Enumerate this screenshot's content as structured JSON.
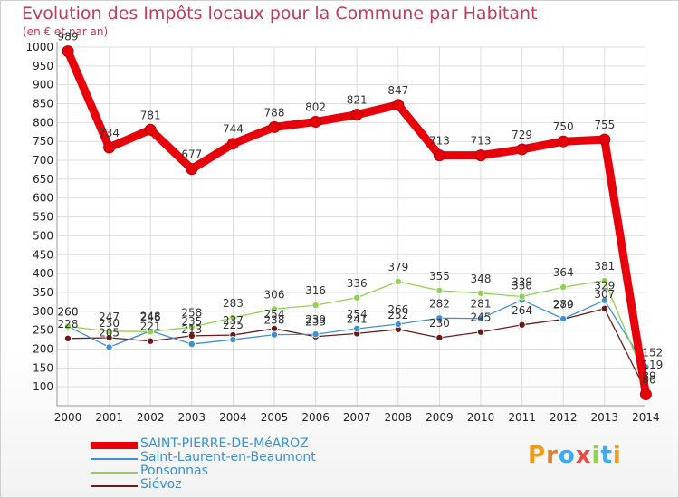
{
  "chart_data": {
    "type": "line",
    "title": "Evolution des Impôts locaux pour la Commune par Habitant",
    "subtitle": "(en € et par an)",
    "x": [
      "2000",
      "2001",
      "2002",
      "2003",
      "2004",
      "2005",
      "2006",
      "2007",
      "2008",
      "2009",
      "2010",
      "2011",
      "2012",
      "2013",
      "2014"
    ],
    "y_ticks": [
      100,
      150,
      200,
      250,
      300,
      350,
      400,
      450,
      500,
      550,
      600,
      650,
      700,
      750,
      800,
      850,
      900,
      950,
      1000
    ],
    "ylim": [
      50,
      1000
    ],
    "grid": true,
    "legend_position": "bottom-left",
    "series": [
      {
        "name": "SAINT-PIERRE-DE-MéAROZ",
        "color": "#e8000b",
        "values": [
          989,
          734,
          781,
          677,
          744,
          788,
          802,
          821,
          847,
          713,
          713,
          729,
          750,
          755,
          80
        ]
      },
      {
        "name": "Saint-Laurent-en-Beaumont",
        "color": "#3f8fd6",
        "values": [
          260,
          205,
          248,
          213,
          225,
          238,
          239,
          254,
          266,
          282,
          281,
          330,
          280,
          329,
          152
        ]
      },
      {
        "name": "Ponsonnas",
        "color": "#8ed34f",
        "values": [
          260,
          247,
          246,
          258,
          283,
          306,
          316,
          336,
          379,
          355,
          348,
          339,
          364,
          381,
          119
        ]
      },
      {
        "name": "Siévoz",
        "color": "#6b1a1a",
        "values": [
          228,
          230,
          221,
          235,
          237,
          254,
          233,
          241,
          252,
          230,
          245,
          264,
          279,
          307,
          89
        ]
      }
    ],
    "data_labels": [
      [
        "989",
        "734",
        "781",
        "677",
        "744",
        "788",
        "802",
        "821",
        "847",
        "713",
        "713",
        "729",
        "750",
        "755",
        "80"
      ],
      [
        "260",
        "205",
        "248",
        "213",
        "225",
        "238",
        "239",
        "254",
        "266",
        "282",
        "281",
        "330",
        "280",
        "329",
        "152"
      ],
      [
        "260",
        "247",
        "246",
        "258",
        "283",
        "306",
        "316",
        "336",
        "379",
        "355",
        "348",
        "339",
        "364",
        "381",
        "119"
      ],
      [
        "228",
        "230",
        "221",
        "235",
        "237",
        "254",
        "233",
        "241",
        "252",
        "230",
        "245",
        "264",
        "279",
        "307",
        "89"
      ]
    ]
  },
  "brand": {
    "text": "Proxiti",
    "letters": [
      {
        "ch": "P",
        "color": "#f39c12"
      },
      {
        "ch": "r",
        "color": "#e67e22"
      },
      {
        "ch": "o",
        "color": "#3fa9f5"
      },
      {
        "ch": "x",
        "color": "#e74c3c"
      },
      {
        "ch": "i",
        "color": "#8ed34f"
      },
      {
        "ch": "t",
        "color": "#3fa9f5"
      },
      {
        "ch": "i",
        "color": "#f39c12"
      }
    ]
  }
}
